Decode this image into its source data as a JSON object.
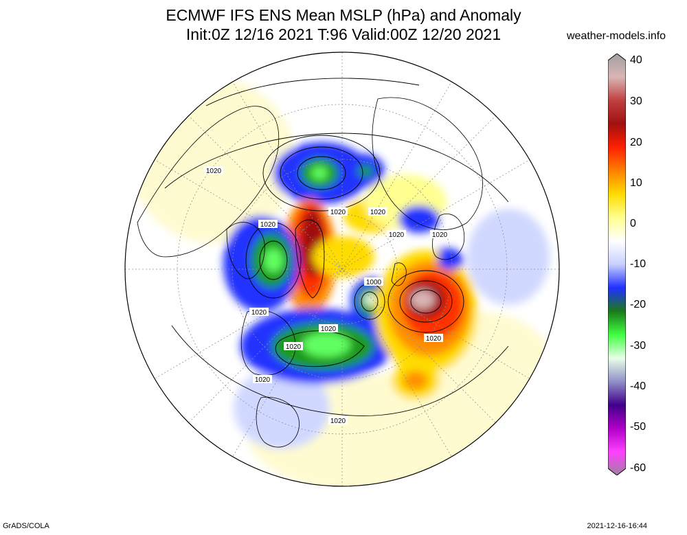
{
  "header": {
    "title_line1": "ECMWF IFS ENS Mean MSLP (hPa) and Anomaly",
    "title_line2": "Init:0Z 12/16 2021  T:96 Valid:00Z 12/20 2021",
    "credit": "weather-models.info"
  },
  "footer": {
    "left": "GrADS/COLA",
    "right": "2021-12-16-16:44"
  },
  "colorbar": {
    "ticks": [
      "40",
      "30",
      "20",
      "10",
      "0",
      "-10",
      "-20",
      "-30",
      "-40",
      "-50",
      "-60"
    ],
    "stops": [
      "#a0a0a0",
      "#d9b5b5",
      "#c04040",
      "#a01010",
      "#ff2000",
      "#ff8000",
      "#ffdc00",
      "#ffff90",
      "#ffffff",
      "#c8d0ff",
      "#2030ff",
      "#1a7a1a",
      "#40ff40",
      "#e8ffe8",
      "#9090c8",
      "#40008a",
      "#b000c8",
      "#ff40ff",
      "#a080a0"
    ]
  },
  "map": {
    "contour_labels": [
      "1020",
      "1020",
      "1020",
      "1020",
      "1020",
      "1020",
      "1000",
      "1020",
      "1020",
      "1020",
      "1020",
      "1020",
      "1020",
      "1020"
    ],
    "anomaly_colors": {
      "positive_strong": "#a01010",
      "positive": "#ff3000",
      "positive_mid": "#ff9000",
      "positive_weak": "#fff060",
      "positive_faint": "#fffbd0",
      "negative_faint": "#d0d8ff",
      "negative": "#2030ff",
      "negative_strong": "#1a9a1a",
      "negative_core": "#60ff60"
    }
  }
}
